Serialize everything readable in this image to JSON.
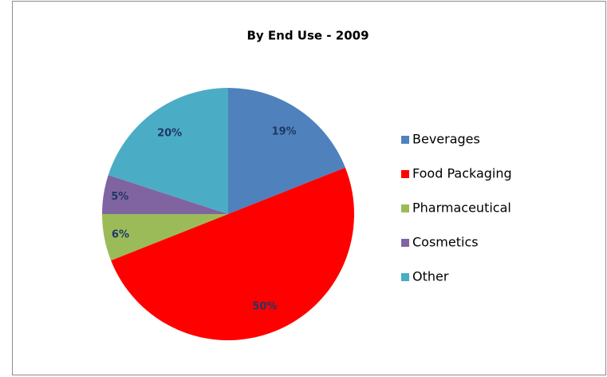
{
  "chart_data": {
    "type": "pie",
    "title": "By End Use - 2009",
    "categories": [
      "Beverages",
      "Food Packaging",
      "Pharmaceutical",
      "Cosmetics",
      "Other"
    ],
    "values": [
      19,
      50,
      6,
      5,
      20
    ],
    "value_labels": [
      "19%",
      "50%",
      "6%",
      "5%",
      "20%"
    ],
    "colors": [
      "#4f81bd",
      "#ff0000",
      "#9bbb59",
      "#8064a2",
      "#4bacc6"
    ],
    "legend": "right"
  }
}
